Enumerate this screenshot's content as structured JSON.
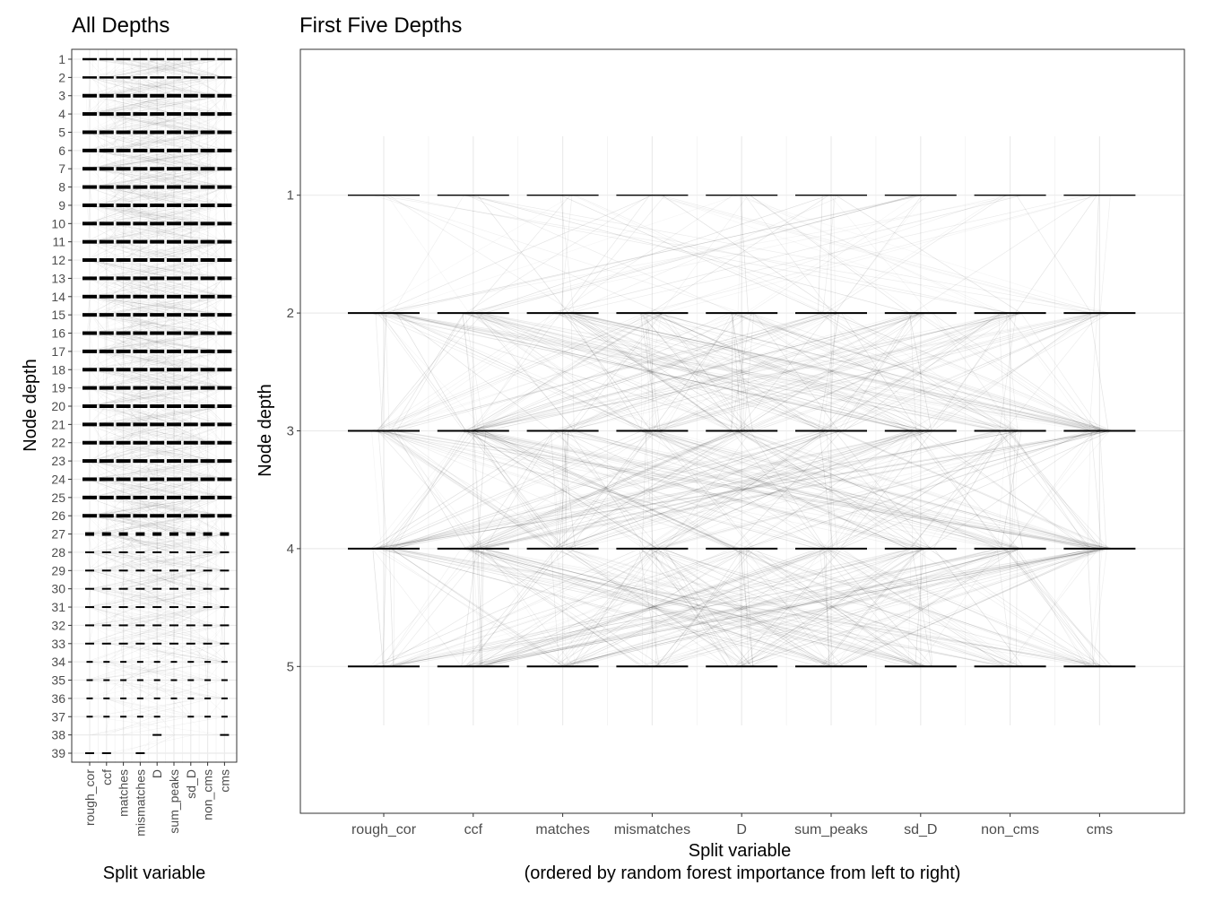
{
  "chart_data": [
    {
      "type": "parallel-lines",
      "title": "All Depths",
      "xlabel": "Split variable",
      "ylabel": "Node depth",
      "categories": [
        "rough_cor",
        "ccf",
        "matches",
        "mismatches",
        "D",
        "sum_peaks",
        "sd_D",
        "non_cms",
        "cms"
      ],
      "y_ticks": [
        1,
        2,
        3,
        4,
        5,
        6,
        7,
        8,
        9,
        10,
        11,
        12,
        13,
        14,
        15,
        16,
        17,
        18,
        19,
        20,
        21,
        22,
        23,
        24,
        25,
        26,
        27,
        28,
        29,
        30,
        31,
        32,
        33,
        34,
        35,
        36,
        37,
        38,
        39
      ],
      "ylim": [
        1,
        39
      ],
      "y_reversed": true,
      "grid": true,
      "legend": "none"
    },
    {
      "type": "parallel-lines",
      "title": "First Five Depths",
      "xlabel": "Split variable",
      "xlabel_note": "(ordered by random forest importance from left to right)",
      "ylabel": "Node depth",
      "categories": [
        "rough_cor",
        "ccf",
        "matches",
        "mismatches",
        "D",
        "sum_peaks",
        "sd_D",
        "non_cms",
        "cms"
      ],
      "y_ticks": [
        1,
        2,
        3,
        4,
        5
      ],
      "ylim": [
        0.5,
        5.5
      ],
      "y_reversed": true,
      "grid": true,
      "legend": "none"
    }
  ]
}
